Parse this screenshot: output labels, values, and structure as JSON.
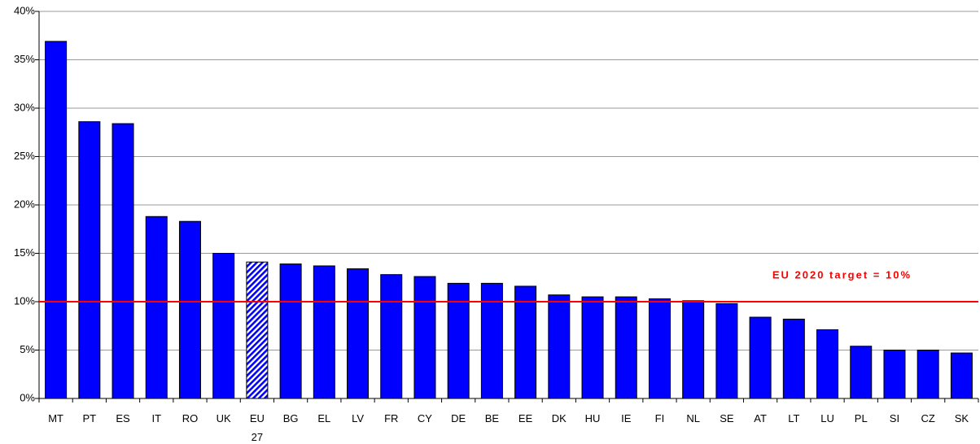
{
  "chart_data": {
    "type": "bar",
    "categories": [
      "MT",
      "PT",
      "ES",
      "IT",
      "RO",
      "UK",
      "EU 27",
      "BG",
      "EL",
      "LV",
      "FR",
      "CY",
      "DE",
      "BE",
      "EE",
      "DK",
      "HU",
      "IE",
      "FI",
      "NL",
      "SE",
      "AT",
      "LT",
      "LU",
      "PL",
      "SI",
      "CZ",
      "SK"
    ],
    "values": [
      36.9,
      28.6,
      28.4,
      18.8,
      18.3,
      15.0,
      14.1,
      13.9,
      13.7,
      13.4,
      12.8,
      12.6,
      11.9,
      11.9,
      11.6,
      10.7,
      10.5,
      10.5,
      10.3,
      10.1,
      9.8,
      8.4,
      8.2,
      7.1,
      5.4,
      5.0,
      5.0,
      4.7
    ],
    "color": "#0000ff",
    "hatched_index": 6,
    "ylim": [
      0,
      40
    ],
    "yticks": [
      {
        "value": 0,
        "label": "0%"
      },
      {
        "value": 5,
        "label": "5%"
      },
      {
        "value": 10,
        "label": "10%"
      },
      {
        "value": 15,
        "label": "15%"
      },
      {
        "value": 20,
        "label": "20%"
      },
      {
        "value": 25,
        "label": "25%"
      },
      {
        "value": 30,
        "label": "30%"
      },
      {
        "value": 35,
        "label": "35%"
      },
      {
        "value": 40,
        "label": "40%"
      }
    ],
    "grid": true,
    "target": {
      "value": 10,
      "label": "EU 2020 target = 10%",
      "color": "#ff0000"
    }
  }
}
